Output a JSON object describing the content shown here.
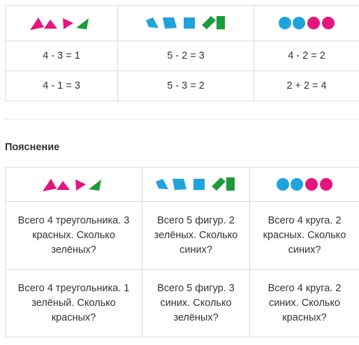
{
  "table1": {
    "icon_row": [
      {
        "icon": "triangles-icon"
      },
      {
        "icon": "figures-icon"
      },
      {
        "icon": "circles-icon"
      }
    ],
    "rows": [
      [
        "4 - 3 = 1",
        "5 - 2 = 3",
        "4 - 2 = 2"
      ],
      [
        "4 - 1 = 3",
        "5 - 3 = 2",
        "2 + 2 = 4"
      ]
    ]
  },
  "heading": "Пояснение",
  "table2": {
    "rows": [
      [
        "Всего 4 треугольника. 3 красных. Сколько зелёных?",
        "Всего 5 фигур. 2 зелёных. Сколько синих?",
        "Всего 4 круга. 2 красных. Сколько синих?"
      ],
      [
        "Всего 4 треугольника. 1 зелёный. Сколько красных?",
        "Всего 5 фигур. 3 синих. Сколько зелёных?",
        "Всего 4 круга. 2 синих. Сколько красных?"
      ]
    ]
  },
  "colors": {
    "pink": "#e5157f",
    "green": "#1e9b3a",
    "blue": "#1fa3dc"
  }
}
